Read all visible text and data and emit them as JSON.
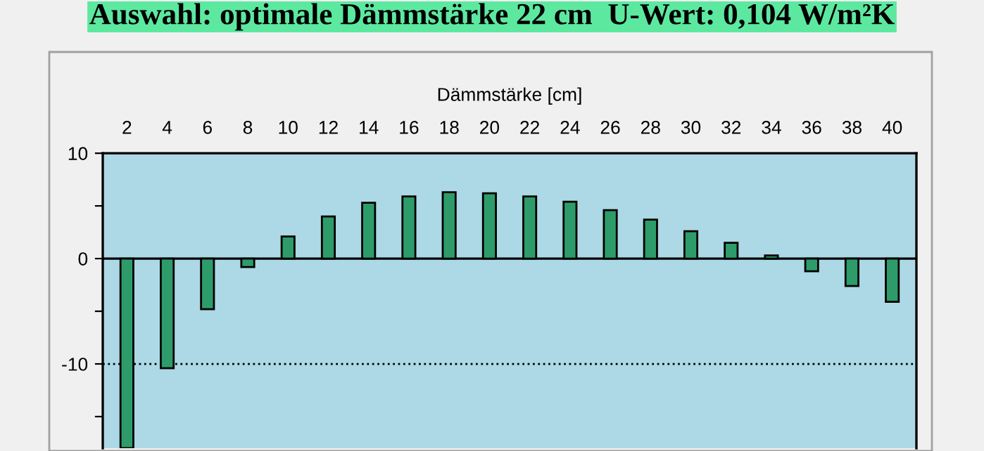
{
  "chart_data": {
    "type": "bar",
    "title": "Auswahl: optimale Dämmstärke 22 cm  U-Wert: 0,104 W/m²K",
    "xlabel": "Dämmstärke [cm]",
    "categories": [
      "2",
      "4",
      "6",
      "8",
      "10",
      "12",
      "14",
      "16",
      "18",
      "20",
      "22",
      "24",
      "26",
      "28",
      "30",
      "32",
      "34",
      "36",
      "38",
      "40"
    ],
    "values": [
      -18,
      -10.4,
      -4.8,
      -0.8,
      2.1,
      4.0,
      5.3,
      5.9,
      6.3,
      6.2,
      5.9,
      5.4,
      4.6,
      3.7,
      2.6,
      1.5,
      0.3,
      -1.2,
      -2.6,
      -4.1
    ],
    "color": "#2e9c6a",
    "ylim": [
      -18,
      10
    ],
    "yticks": [
      10,
      {
        "value": 5,
        "label": null
      },
      0,
      {
        "value": -5,
        "label": null
      },
      -10,
      {
        "value": -15,
        "label": null
      }
    ],
    "ref_lines": [
      {
        "axis": "y",
        "value": 0,
        "line_style": "solid",
        "color": "#000000"
      },
      {
        "axis": "y",
        "value": -10,
        "line_style": "dotted",
        "color": "#000000"
      }
    ],
    "grid": false
  }
}
